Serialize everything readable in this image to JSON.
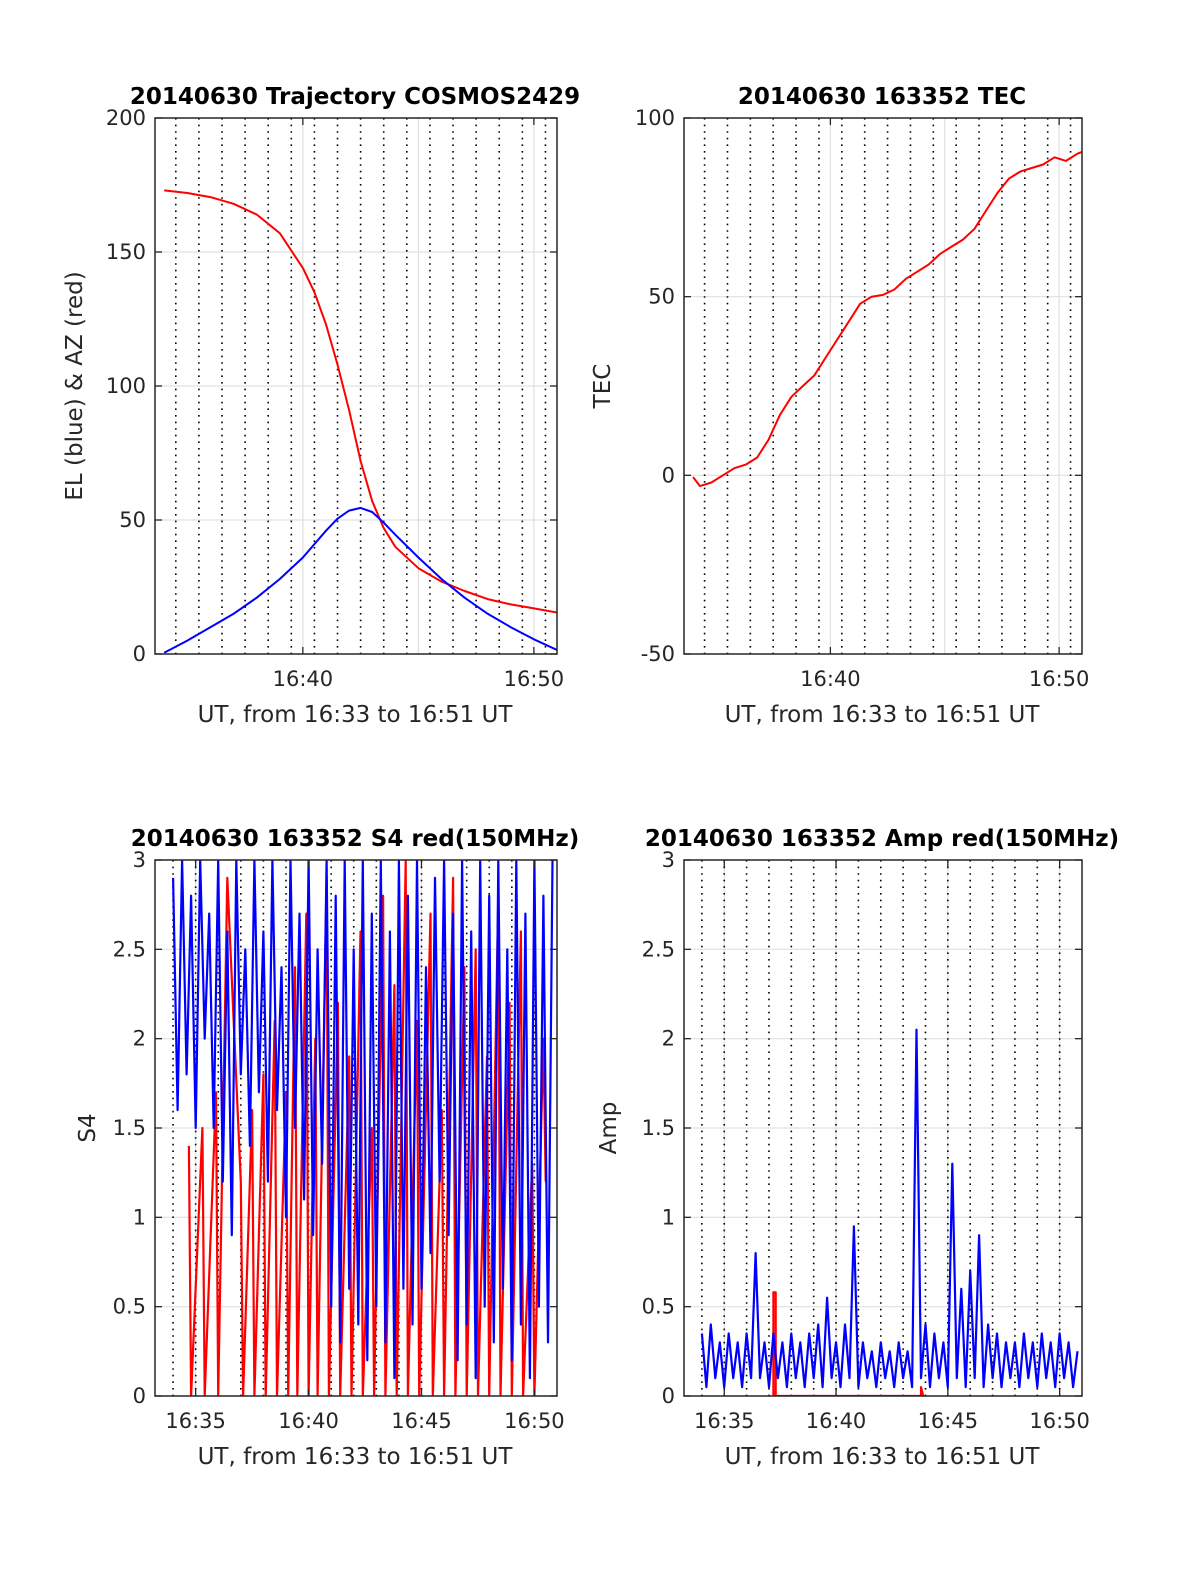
{
  "chart_data": [
    {
      "id": "traj",
      "type": "line",
      "title": "20140630 Trajectory COSMOS2429",
      "xlabel": "UT, from 16:33 to 16:51 UT",
      "ylabel": "EL (blue) & AZ (red)",
      "xlim": [
        33.6,
        51.0
      ],
      "ylim": [
        0,
        200
      ],
      "x_ticks": [
        {
          "value": 40,
          "label": "16:40"
        },
        {
          "value": 50,
          "label": "16:50"
        }
      ],
      "y_ticks": [
        {
          "value": 0,
          "label": "0"
        },
        {
          "value": 50,
          "label": "50"
        },
        {
          "value": 100,
          "label": "100"
        },
        {
          "value": 150,
          "label": "150"
        },
        {
          "value": 200,
          "label": "200"
        }
      ],
      "dotted_x": [
        34.5,
        35.5,
        36.5,
        37.5,
        38.5,
        39.5,
        40.5,
        41.5,
        42.5,
        43.5,
        44.5,
        45.5,
        46.5,
        47.5,
        48.5,
        49.5,
        50.5
      ],
      "grid_x": [
        40,
        45,
        50
      ],
      "grid_y": [
        50,
        100,
        150
      ],
      "series": [
        {
          "color": "#ff0000",
          "x": [
            34.0,
            35.0,
            36.0,
            37.0,
            38.0,
            39.0,
            40.0,
            40.5,
            41.0,
            41.5,
            42.0,
            42.5,
            43.0,
            43.5,
            44.0,
            45.0,
            46.0,
            47.0,
            48.0,
            49.0,
            50.0,
            51.0
          ],
          "values": [
            173,
            172,
            170.5,
            168,
            164,
            157,
            144,
            135,
            123,
            108,
            91,
            72,
            57,
            47,
            40,
            32,
            27,
            23.5,
            20.5,
            18.5,
            17,
            15.5
          ]
        },
        {
          "color": "#0000ff",
          "x": [
            34.0,
            35.0,
            36.0,
            37.0,
            38.0,
            39.0,
            40.0,
            40.5,
            41.0,
            41.5,
            42.0,
            42.5,
            43.0,
            43.5,
            44.0,
            45.0,
            46.0,
            47.0,
            48.0,
            49.0,
            50.0,
            51.0
          ],
          "values": [
            0.5,
            5,
            10,
            15,
            21,
            28,
            36,
            41,
            46,
            50.5,
            53.5,
            54.5,
            53,
            49,
            44.5,
            36,
            28,
            21,
            15,
            10,
            5.5,
            1.5
          ]
        }
      ]
    },
    {
      "id": "tec",
      "type": "line",
      "title": "20140630 163352 TEC",
      "xlabel": "UT, from 16:33 to 16:51 UT",
      "ylabel": "TEC",
      "xlim": [
        33.6,
        51.0
      ],
      "ylim": [
        -50,
        100
      ],
      "x_ticks": [
        {
          "value": 40,
          "label": "16:40"
        },
        {
          "value": 50,
          "label": "16:50"
        }
      ],
      "y_ticks": [
        {
          "value": -50,
          "label": "-50"
        },
        {
          "value": 0,
          "label": "0"
        },
        {
          "value": 50,
          "label": "50"
        },
        {
          "value": 100,
          "label": "100"
        }
      ],
      "dotted_x": [
        34.5,
        35.5,
        36.5,
        37.5,
        38.5,
        39.5,
        40.5,
        41.5,
        42.5,
        43.5,
        44.5,
        45.5,
        46.5,
        47.5,
        48.5,
        49.5,
        50.5
      ],
      "grid_x": [
        40,
        45,
        50
      ],
      "grid_y": [
        0,
        50
      ],
      "series": [
        {
          "color": "#ff0000",
          "x": [
            34.0,
            34.3,
            34.8,
            35.3,
            35.8,
            36.3,
            36.8,
            37.3,
            37.8,
            38.3,
            38.8,
            39.3,
            39.8,
            40.3,
            40.8,
            41.3,
            41.8,
            42.3,
            42.8,
            43.3,
            43.8,
            44.3,
            44.8,
            45.3,
            45.8,
            46.3,
            46.8,
            47.3,
            47.8,
            48.3,
            48.8,
            49.3,
            49.8,
            50.3,
            50.8,
            51.0
          ],
          "values": [
            -0.5,
            -3,
            -2,
            0,
            2,
            3,
            5,
            10,
            17,
            22,
            25,
            28,
            33,
            38,
            43,
            48,
            50,
            50.5,
            52,
            55,
            57,
            59,
            62,
            64,
            66,
            69,
            74,
            79,
            83,
            85,
            86,
            87,
            89,
            88,
            90,
            90.5
          ]
        }
      ]
    },
    {
      "id": "s4",
      "type": "line",
      "title": "20140630 163352 S4 red(150MHz)",
      "xlabel": "UT, from 16:33 to 16:51 UT",
      "ylabel": "S4",
      "xlim": [
        33.2,
        51.0
      ],
      "ylim": [
        0,
        3
      ],
      "x_ticks": [
        {
          "value": 35,
          "label": "16:35"
        },
        {
          "value": 40,
          "label": "16:40"
        },
        {
          "value": 45,
          "label": "16:45"
        },
        {
          "value": 50,
          "label": "16:50"
        }
      ],
      "y_ticks": [
        {
          "value": 0,
          "label": "0"
        },
        {
          "value": 0.5,
          "label": "0.5"
        },
        {
          "value": 1,
          "label": "1"
        },
        {
          "value": 1.5,
          "label": "1.5"
        },
        {
          "value": 2,
          "label": "2"
        },
        {
          "value": 2.5,
          "label": "2.5"
        },
        {
          "value": 3,
          "label": "3"
        }
      ],
      "dotted_x": [
        34.0,
        35.0,
        36.0,
        37.0,
        38.0,
        39.0,
        40.0,
        41.0,
        42.0,
        43.0,
        44.0,
        45.0,
        46.0,
        47.0,
        48.0,
        49.0,
        50.0
      ],
      "grid_x": [
        35,
        40,
        45,
        50
      ],
      "grid_y": [
        0.5,
        1,
        1.5,
        2,
        2.5
      ],
      "series": [
        {
          "color": "#ff0000",
          "x": [
            34.7,
            34.8,
            35.3,
            35.4,
            35.9,
            36.0,
            36.4,
            37.0,
            37.1,
            37.5,
            37.6,
            38.0,
            38.1,
            38.5,
            38.6,
            39.0,
            39.1,
            39.4,
            39.5,
            39.9,
            40.0,
            40.3,
            40.4,
            40.8,
            40.9,
            41.3,
            41.4,
            41.8,
            41.9,
            42.3,
            42.4,
            42.8,
            42.9,
            43.3,
            43.4,
            43.8,
            43.9,
            44.3,
            44.4,
            44.8,
            44.9,
            45.4,
            45.5,
            45.9,
            46.0,
            46.4,
            46.5,
            46.9,
            47.0,
            47.4,
            47.5,
            47.9,
            48.0,
            48.4,
            48.5,
            48.9,
            49.0,
            49.4,
            49.5,
            49.9,
            50.0,
            50.4,
            50.5
          ],
          "values": [
            1.4,
            0,
            1.5,
            0,
            1.7,
            0,
            2.9,
            1.2,
            0,
            1.6,
            0,
            1.8,
            0,
            2.1,
            0,
            1.7,
            0,
            2.4,
            0,
            2.7,
            0,
            2.0,
            0,
            2.9,
            0,
            2.2,
            0,
            1.9,
            0,
            2.6,
            0,
            1.5,
            0,
            2.8,
            0,
            2.3,
            0,
            3.0,
            0,
            2.1,
            0,
            2.7,
            0,
            1.6,
            0,
            2.9,
            0,
            2.4,
            0,
            2.5,
            0,
            1.9,
            0,
            2.8,
            0,
            2.2,
            0,
            2.6,
            0,
            1.3,
            0,
            2.0,
            1.2
          ]
        },
        {
          "color": "#0000ff",
          "x": [
            34.0,
            34.2,
            34.4,
            34.6,
            34.8,
            35.0,
            35.2,
            35.4,
            35.6,
            35.8,
            36.0,
            36.2,
            36.4,
            36.6,
            36.8,
            37.0,
            37.2,
            37.4,
            37.6,
            37.8,
            38.0,
            38.2,
            38.4,
            38.6,
            38.8,
            39.0,
            39.2,
            39.4,
            39.6,
            39.8,
            40.0,
            40.2,
            40.4,
            40.6,
            40.8,
            41.0,
            41.2,
            41.4,
            41.6,
            41.8,
            42.0,
            42.2,
            42.4,
            42.6,
            42.8,
            43.0,
            43.2,
            43.4,
            43.6,
            43.8,
            44.0,
            44.2,
            44.4,
            44.6,
            44.8,
            45.0,
            45.2,
            45.4,
            45.6,
            45.8,
            46.0,
            46.2,
            46.4,
            46.6,
            46.8,
            47.0,
            47.2,
            47.4,
            47.6,
            47.8,
            48.0,
            48.2,
            48.4,
            48.6,
            48.8,
            49.0,
            49.2,
            49.4,
            49.6,
            49.8,
            50.0,
            50.2,
            50.4,
            50.6,
            50.8
          ],
          "values": [
            2.9,
            1.6,
            3.0,
            1.8,
            2.8,
            1.5,
            3.0,
            2.0,
            2.7,
            1.5,
            3.0,
            1.2,
            2.6,
            0.9,
            3.0,
            1.8,
            2.5,
            1.4,
            3.0,
            1.7,
            2.6,
            1.2,
            3.0,
            1.6,
            2.4,
            1.0,
            3.0,
            1.5,
            2.7,
            1.1,
            3.0,
            0.9,
            2.5,
            1.3,
            3.0,
            0.5,
            2.8,
            0.3,
            3.0,
            0.6,
            2.5,
            0.4,
            3.0,
            0.2,
            2.7,
            0.5,
            3.0,
            0.3,
            2.6,
            0.1,
            3.0,
            0.6,
            2.8,
            0.4,
            3.0,
            0.6,
            2.4,
            0.8,
            2.9,
            1.2,
            3.0,
            0.9,
            2.7,
            0.2,
            3.0,
            0.4,
            2.6,
            0.1,
            3.0,
            0.5,
            2.8,
            0.3,
            3.0,
            0.6,
            2.5,
            0.2,
            3.0,
            0.4,
            2.7,
            0.1,
            3.0,
            0.5,
            2.8,
            0.3,
            3.0
          ]
        }
      ]
    },
    {
      "id": "amp",
      "type": "line",
      "title": "20140630 163352 Amp red(150MHz)",
      "xlabel": "UT, from 16:33 to 16:51 UT",
      "ylabel": "Amp",
      "xlim": [
        33.2,
        51.0
      ],
      "ylim": [
        0,
        3
      ],
      "x_ticks": [
        {
          "value": 35,
          "label": "16:35"
        },
        {
          "value": 40,
          "label": "16:40"
        },
        {
          "value": 45,
          "label": "16:45"
        },
        {
          "value": 50,
          "label": "16:50"
        }
      ],
      "y_ticks": [
        {
          "value": 0,
          "label": "0"
        },
        {
          "value": 0.5,
          "label": "0.5"
        },
        {
          "value": 1,
          "label": "1"
        },
        {
          "value": 1.5,
          "label": "1.5"
        },
        {
          "value": 2,
          "label": "2"
        },
        {
          "value": 2.5,
          "label": "2.5"
        },
        {
          "value": 3,
          "label": "3"
        }
      ],
      "dotted_x": [
        34.0,
        35.0,
        36.0,
        37.0,
        38.0,
        39.0,
        40.0,
        41.0,
        42.0,
        43.0,
        44.0,
        45.0,
        46.0,
        47.0,
        48.0,
        49.0,
        50.0
      ],
      "grid_x": [
        35,
        40,
        45,
        50
      ],
      "grid_y": [
        0.5,
        1,
        1.5,
        2,
        2.5
      ],
      "series": [
        {
          "color": "#ff0000",
          "x": [
            37.2,
            37.2,
            37.3,
            37.3,
            43.8,
            43.8,
            43.9
          ],
          "values": [
            0,
            0.58,
            0.58,
            0,
            0,
            0.05,
            0
          ]
        },
        {
          "color": "#0000ff",
          "x": [
            34.0,
            34.2,
            34.4,
            34.6,
            34.8,
            35.0,
            35.2,
            35.4,
            35.6,
            35.8,
            36.0,
            36.2,
            36.4,
            36.6,
            36.8,
            37.0,
            37.2,
            37.4,
            37.6,
            37.8,
            38.0,
            38.2,
            38.4,
            38.6,
            38.8,
            39.0,
            39.2,
            39.4,
            39.6,
            39.8,
            40.0,
            40.2,
            40.4,
            40.6,
            40.8,
            41.0,
            41.2,
            41.4,
            41.6,
            41.8,
            42.0,
            42.2,
            42.4,
            42.6,
            42.8,
            43.0,
            43.2,
            43.4,
            43.6,
            43.8,
            44.0,
            44.2,
            44.4,
            44.6,
            44.8,
            45.0,
            45.2,
            45.4,
            45.6,
            45.8,
            46.0,
            46.2,
            46.4,
            46.6,
            46.8,
            47.0,
            47.2,
            47.4,
            47.6,
            47.8,
            48.0,
            48.2,
            48.4,
            48.6,
            48.8,
            49.0,
            49.2,
            49.4,
            49.6,
            49.8,
            50.0,
            50.2,
            50.4,
            50.6,
            50.8
          ],
          "values": [
            0.35,
            0.05,
            0.4,
            0.1,
            0.3,
            0.05,
            0.35,
            0.1,
            0.3,
            0.05,
            0.35,
            0.1,
            0.8,
            0.1,
            0.3,
            0.05,
            0.35,
            0.1,
            0.3,
            0.05,
            0.35,
            0.1,
            0.3,
            0.05,
            0.35,
            0.1,
            0.4,
            0.05,
            0.55,
            0.1,
            0.3,
            0.05,
            0.4,
            0.1,
            0.95,
            0.05,
            0.3,
            0.1,
            0.25,
            0.05,
            0.3,
            0.1,
            0.25,
            0.05,
            0.3,
            0.1,
            0.25,
            0.05,
            2.05,
            0.1,
            0.4,
            0.05,
            0.35,
            0.1,
            0.3,
            0.05,
            1.3,
            0.1,
            0.6,
            0.05,
            0.7,
            0.1,
            0.9,
            0.05,
            0.4,
            0.1,
            0.35,
            0.05,
            0.3,
            0.1,
            0.3,
            0.05,
            0.35,
            0.1,
            0.3,
            0.05,
            0.35,
            0.1,
            0.3,
            0.05,
            0.35,
            0.1,
            0.3,
            0.05,
            0.25
          ]
        }
      ]
    }
  ]
}
